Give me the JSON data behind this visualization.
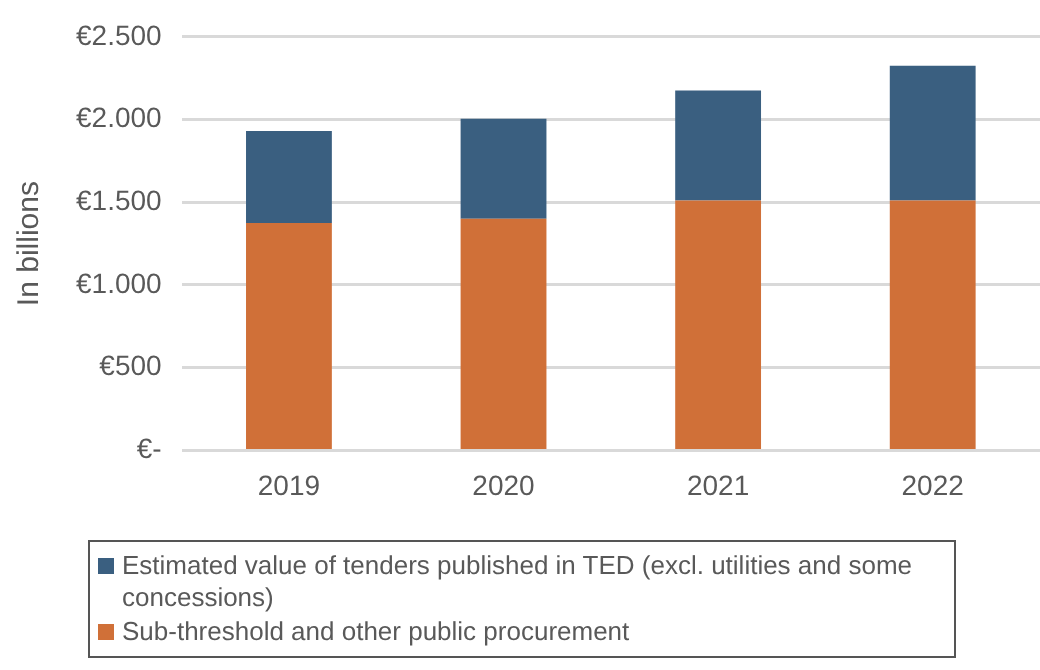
{
  "chart_data": {
    "type": "bar",
    "stacked": true,
    "ylabel": "In billions",
    "categories": [
      "2019",
      "2020",
      "2021",
      "2022"
    ],
    "series": [
      {
        "name": "Sub-threshold and other public procurement",
        "color": "#d07038",
        "values": [
          1375,
          1400,
          1510,
          1510
        ]
      },
      {
        "name": "Estimated value of tenders published in TED (excl. utilities and some concessions)",
        "color": "#3a5f80",
        "values": [
          555,
          605,
          665,
          815
        ]
      }
    ],
    "ylim": [
      0,
      2500
    ],
    "yticks": [
      {
        "value": 0,
        "label": "€-"
      },
      {
        "value": 500,
        "label": "€500"
      },
      {
        "value": 1000,
        "label": "€1.000"
      },
      {
        "value": 1500,
        "label": "€1.500"
      },
      {
        "value": 2000,
        "label": "€2.000"
      },
      {
        "value": 2500,
        "label": "€2.500"
      }
    ],
    "grid": "y",
    "legend": "bottom"
  }
}
